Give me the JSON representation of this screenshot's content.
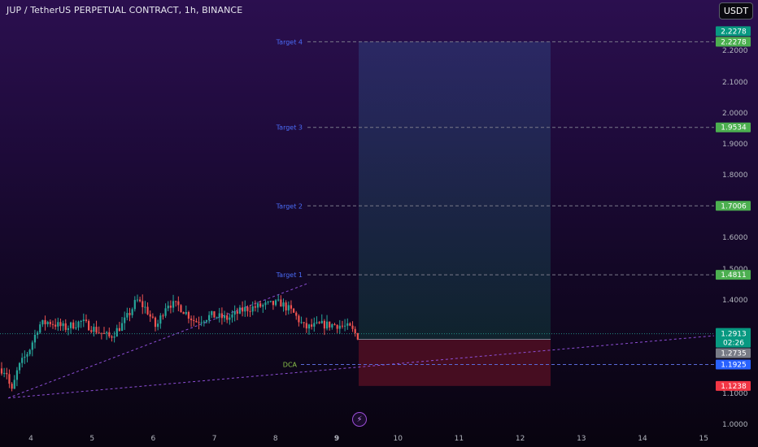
{
  "header": {
    "symbol_title": "JUP / TetherUS PERPETUAL CONTRACT, 1h, BINANCE",
    "currency_button": "USDT"
  },
  "price_axis": {
    "ticks": [
      "2.2000",
      "2.1000",
      "2.0000",
      "1.9000",
      "1.8000",
      "1.6000",
      "1.5000",
      "1.4000",
      "1.1000",
      "1.0000"
    ]
  },
  "time_axis": {
    "ticks": [
      "4",
      "5",
      "6",
      "7",
      "8",
      "9",
      "10",
      "11",
      "12",
      "13",
      "14",
      "15"
    ],
    "bold_tick": "9"
  },
  "levels": [
    {
      "name": "Target 4",
      "price": "2.2278",
      "color": "#26a69a",
      "tag_color": "#089981"
    },
    {
      "name": "Target 3",
      "price": "1.9534",
      "color": "#4caf50",
      "tag_color": "#4caf50"
    },
    {
      "name": "Target 2",
      "price": "1.7006",
      "color": "#4caf50",
      "tag_color": "#4caf50"
    },
    {
      "name": "Target 1",
      "price": "1.4811",
      "color": "#4caf50",
      "tag_color": "#4caf50"
    },
    {
      "name": "DCA",
      "price": "1.1925",
      "color": "#2962ff",
      "tag_color": "#2962ff"
    }
  ],
  "price_tags": {
    "target4_second": "2.2278",
    "current_price": "1.2913",
    "countdown": "02:26",
    "entry": "1.2735",
    "stop": "1.1238"
  },
  "colors": {
    "target_line": "#7a7a8a",
    "target_label": "#4a6cf7",
    "dca_label": "#8bc34a",
    "bull": "#26a69a",
    "bear": "#ef5350",
    "profit_zone": "#2e3d6a",
    "loss_zone": "#5a1024",
    "stop_tag": "#f23645",
    "entry_tag": "#787b86",
    "current_tag": "#089981"
  },
  "chart_data": {
    "type": "candlestick",
    "timeframe": "1h",
    "x_day_ticks": [
      4,
      5,
      6,
      7,
      8,
      9,
      10,
      11,
      12,
      13,
      14,
      15
    ],
    "ylim": [
      1.0,
      2.25
    ],
    "position_tool": {
      "entry": 1.2735,
      "stop": 1.1238,
      "take_profit": 2.2278,
      "targets": [
        1.4811,
        1.7006,
        1.9534,
        2.2278
      ],
      "dca": 1.1925
    },
    "last_price": 1.2913
  }
}
